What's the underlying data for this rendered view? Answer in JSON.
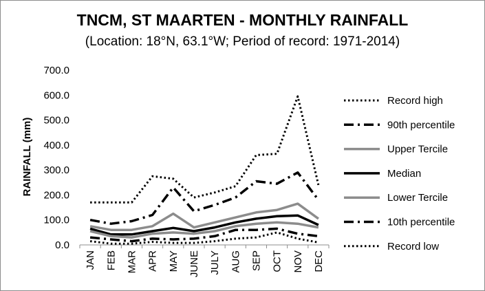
{
  "chart_data": {
    "type": "line",
    "title": "TNCM, ST MAARTEN - MONTHLY RAINFALL",
    "subtitle": "(Location: 18°N, 63.1°W; Period of record: 1971-2014)",
    "ylabel": "RAINFALL (mm)",
    "xlabel": "",
    "ylim": [
      0,
      700
    ],
    "yticks": [
      0,
      100,
      200,
      300,
      400,
      500,
      600,
      700
    ],
    "ytick_labels": [
      "0.0",
      "100.0",
      "200.0",
      "300.0",
      "400.0",
      "500.0",
      "600.0",
      "700.0"
    ],
    "categories": [
      "JAN",
      "FEB",
      "MAR",
      "APR",
      "MAY",
      "JUNE",
      "JULY",
      "AUG",
      "SEP",
      "OCT",
      "NOV",
      "DEC"
    ],
    "grid": false,
    "legend_position": "right",
    "series": [
      {
        "name": "Record high",
        "style": "dotted",
        "color": "#000000",
        "values": [
          170,
          170,
          170,
          275,
          265,
          190,
          210,
          235,
          360,
          365,
          595,
          240
        ]
      },
      {
        "name": "90th percentile",
        "style": "dashdot",
        "color": "#000000",
        "values": [
          100,
          85,
          95,
          120,
          230,
          135,
          160,
          190,
          255,
          245,
          290,
          180
        ]
      },
      {
        "name": "Upper Tercile",
        "style": "solid",
        "color": "#8c8c8c",
        "values": [
          75,
          60,
          60,
          75,
          125,
          70,
          90,
          110,
          130,
          140,
          165,
          105
        ]
      },
      {
        "name": "Median",
        "style": "solid",
        "color": "#000000",
        "values": [
          65,
          42,
          42,
          55,
          68,
          55,
          70,
          90,
          105,
          115,
          118,
          80
        ]
      },
      {
        "name": "Lower Tercile",
        "style": "solid",
        "color": "#8c8c8c",
        "values": [
          55,
          35,
          30,
          45,
          50,
          45,
          55,
          75,
          85,
          90,
          85,
          70
        ]
      },
      {
        "name": "10th percentile",
        "style": "dashdot",
        "color": "#000000",
        "values": [
          30,
          22,
          15,
          25,
          22,
          25,
          35,
          60,
          60,
          65,
          45,
          35
        ]
      },
      {
        "name": "Record low",
        "style": "dotted",
        "color": "#000000",
        "values": [
          15,
          5,
          5,
          12,
          8,
          8,
          15,
          25,
          30,
          50,
          25,
          10
        ]
      }
    ]
  }
}
